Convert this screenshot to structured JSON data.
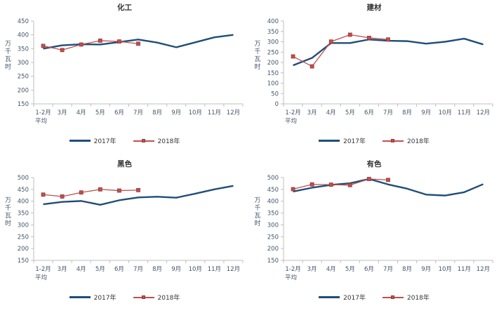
{
  "colors": {
    "year2017": "#1F4E79",
    "year2018": "#C0504D",
    "marker_edge": "#953735",
    "axis": "#BFBFBF",
    "tick_text": "#44546A"
  },
  "chart_data": [
    {
      "type": "line",
      "title": "化工",
      "ylabel": "万千瓦时",
      "ymin": 150,
      "ymax": 450,
      "ystep": 50,
      "grid": false,
      "legend_position": "bottom",
      "categories": [
        "1-2月",
        "3月",
        "4月",
        "5月",
        "6月",
        "7月",
        "8月",
        "9月",
        "10月",
        "11月",
        "12月"
      ],
      "first_category_line2": "平均",
      "series": [
        {
          "name": "2017年",
          "color": "#1F4E79",
          "width": 2.4,
          "marker": false,
          "values": [
            350,
            362,
            366,
            365,
            374,
            383,
            372,
            355,
            373,
            391,
            400
          ]
        },
        {
          "name": "2018年",
          "color": "#C0504D",
          "width": 1.3,
          "marker": true,
          "values": [
            360,
            345,
            365,
            379,
            376,
            368
          ]
        }
      ]
    },
    {
      "type": "line",
      "title": "建材",
      "ylabel": "万千瓦时",
      "ymin": 0,
      "ymax": 400,
      "ystep": 50,
      "grid": false,
      "legend_position": "bottom",
      "categories": [
        "1-2月",
        "3月",
        "4月",
        "5月",
        "6月",
        "7月",
        "8月",
        "9月",
        "10月",
        "11月",
        "12月"
      ],
      "first_category_line2": "平均",
      "series": [
        {
          "name": "2017年",
          "color": "#1F4E79",
          "width": 2.4,
          "marker": false,
          "values": [
            186,
            222,
            294,
            294,
            311,
            305,
            303,
            291,
            300,
            315,
            287
          ]
        },
        {
          "name": "2018年",
          "color": "#C0504D",
          "width": 1.3,
          "marker": true,
          "values": [
            229,
            181,
            301,
            334,
            319,
            311
          ]
        }
      ]
    },
    {
      "type": "line",
      "title": "黑色",
      "ylabel": "万千瓦时",
      "ymin": 150,
      "ymax": 500,
      "ystep": 50,
      "grid": false,
      "legend_position": "bottom",
      "categories": [
        "1-2月",
        "3月",
        "4月",
        "5月",
        "6月",
        "7月",
        "8月",
        "9月",
        "10月",
        "11月",
        "12月"
      ],
      "first_category_line2": "平均",
      "series": [
        {
          "name": "2017年",
          "color": "#1F4E79",
          "width": 2.4,
          "marker": false,
          "values": [
            387,
            397,
            401,
            385,
            404,
            416,
            419,
            415,
            432,
            450,
            465
          ]
        },
        {
          "name": "2018年",
          "color": "#C0504D",
          "width": 1.3,
          "marker": true,
          "values": [
            428,
            420,
            437,
            450,
            445,
            447
          ]
        }
      ]
    },
    {
      "type": "line",
      "title": "有色",
      "ylabel": "万千瓦时",
      "ymin": 150,
      "ymax": 500,
      "ystep": 50,
      "grid": false,
      "legend_position": "bottom",
      "categories": [
        "1-2月",
        "3月",
        "4月",
        "5月",
        "6月",
        "7月",
        "8月",
        "9月",
        "10月",
        "11月",
        "12月"
      ],
      "first_category_line2": "平均",
      "series": [
        {
          "name": "2017年",
          "color": "#1F4E79",
          "width": 2.4,
          "marker": false,
          "values": [
            441,
            457,
            469,
            476,
            494,
            471,
            453,
            428,
            424,
            438,
            472
          ]
        },
        {
          "name": "2018年",
          "color": "#C0504D",
          "width": 1.3,
          "marker": true,
          "values": [
            451,
            471,
            470,
            468,
            494,
            490
          ]
        }
      ]
    }
  ]
}
